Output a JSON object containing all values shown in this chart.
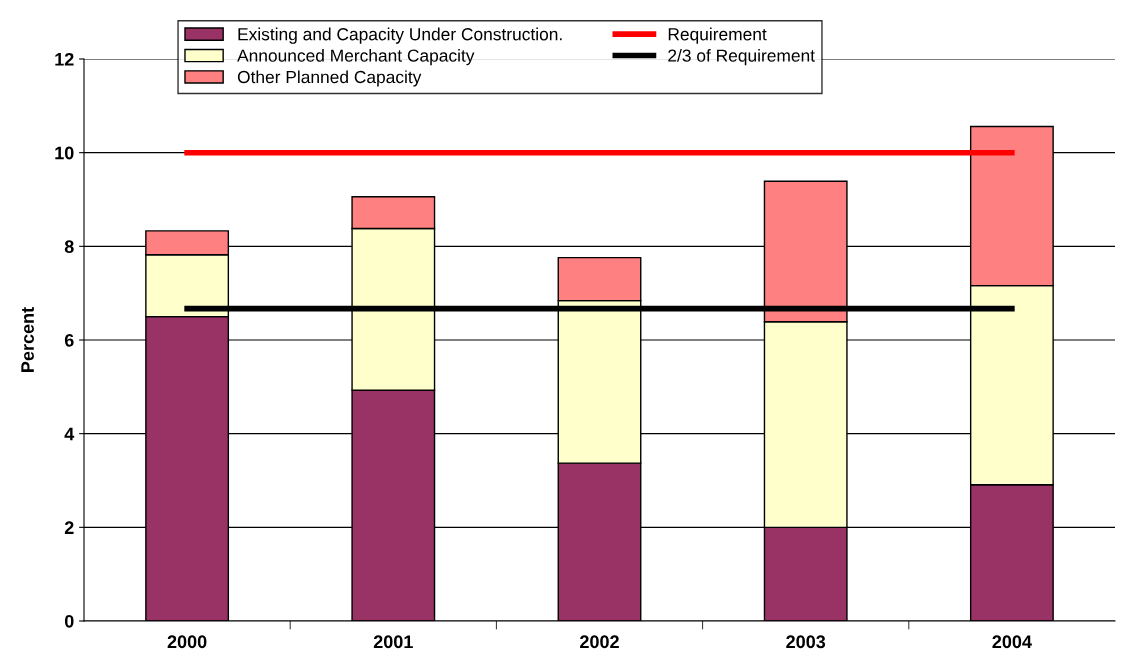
{
  "chart_data": {
    "type": "bar",
    "stacked": true,
    "ylabel": "Percent",
    "categories": [
      "2000",
      "2001",
      "2002",
      "2003",
      "2004"
    ],
    "series": [
      {
        "name": "Existing and Capacity Under Construction.",
        "color": "#993366",
        "values": [
          6.5,
          4.93,
          3.37,
          2.0,
          2.91
        ]
      },
      {
        "name": "Announced Merchant Capacity",
        "color": "#ffffcc",
        "values": [
          1.32,
          3.45,
          3.47,
          4.39,
          4.25
        ]
      },
      {
        "name": "Other Planned Capacity",
        "color": "#ff8080",
        "values": [
          0.51,
          0.68,
          0.92,
          3.0,
          3.4
        ]
      },
      {
        "name": "Requirement",
        "type": "line",
        "color": "#ff0000",
        "values": [
          10,
          10,
          10,
          10,
          10
        ]
      },
      {
        "name": "2/3 of Requirement",
        "type": "line",
        "color": "#000000",
        "values": [
          6.67,
          6.67,
          6.67,
          6.67,
          6.67
        ]
      }
    ],
    "ylim": [
      0,
      12
    ],
    "yticks": [
      0,
      2,
      4,
      6,
      8,
      10,
      12
    ],
    "grid": "y",
    "legend": "top",
    "marker": "none",
    "line_style": "solid"
  }
}
